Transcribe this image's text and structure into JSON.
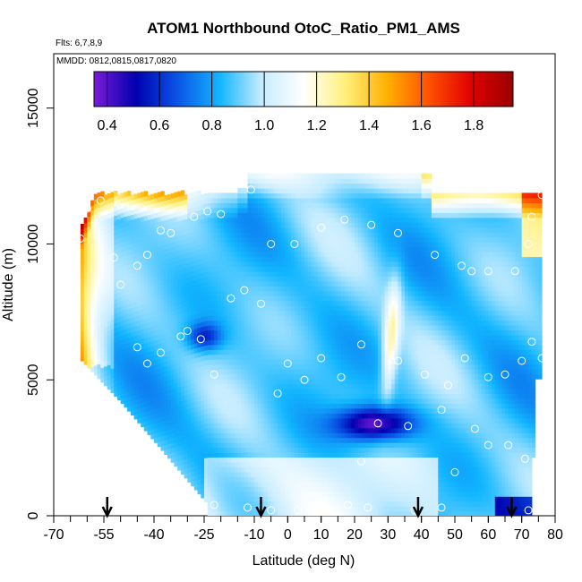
{
  "chart_data": {
    "type": "heatmap",
    "title": "ATOM1 Northbound OtoC_Ratio_PM1_AMS",
    "flights_note": "Flts: 6,7,8,9",
    "dates_note": "MMDD: 0812,0815,0817,0820",
    "xlabel": "Latitude (deg N)",
    "ylabel": "Altitude (m)",
    "xlim": [
      -70,
      80
    ],
    "ylim": [
      0,
      17000
    ],
    "x_ticks": [
      "-70",
      "-55",
      "-40",
      "-25",
      "-10",
      "0",
      "10",
      "20",
      "30",
      "40",
      "50",
      "60",
      "70",
      "80"
    ],
    "x_tick_values": [
      -70,
      -55,
      -40,
      -25,
      -10,
      0,
      10,
      20,
      30,
      40,
      50,
      60,
      70,
      80
    ],
    "y_ticks": [
      "0",
      "5000",
      "10000",
      "15000"
    ],
    "y_tick_values": [
      0,
      5000,
      10000,
      15000
    ],
    "colorbar": {
      "range": [
        0.35,
        1.95
      ],
      "ticks": [
        "0.4",
        "0.6",
        "0.8",
        "1.0",
        "1.2",
        "1.4",
        "1.6",
        "1.8"
      ],
      "tick_values": [
        0.4,
        0.6,
        0.8,
        1.0,
        1.2,
        1.4,
        1.6,
        1.8
      ],
      "colors": [
        "#7a1bd6",
        "#0000b0",
        "#0a55e6",
        "#12b6ff",
        "#c6ecff",
        "#ffffff",
        "#fff07a",
        "#ffb000",
        "#ff5000",
        "#e00000",
        "#990000"
      ]
    },
    "arrows_latitude": [
      -54,
      -8,
      39,
      67
    ],
    "points": [
      {
        "lat": -62,
        "alt": 10200
      },
      {
        "lat": -60,
        "alt": 11300
      },
      {
        "lat": -56,
        "alt": 11600
      },
      {
        "lat": -50,
        "alt": 8500
      },
      {
        "lat": -45,
        "alt": 9200
      },
      {
        "lat": -42,
        "alt": 9600
      },
      {
        "lat": -38,
        "alt": 10500
      },
      {
        "lat": -35,
        "alt": 10400
      },
      {
        "lat": -28,
        "alt": 11000
      },
      {
        "lat": -24,
        "alt": 11200
      },
      {
        "lat": -20,
        "alt": 11100
      },
      {
        "lat": -11,
        "alt": 12000
      },
      {
        "lat": -5,
        "alt": 10000
      },
      {
        "lat": 2,
        "alt": 10000
      },
      {
        "lat": 10,
        "alt": 10600
      },
      {
        "lat": 17,
        "alt": 10900
      },
      {
        "lat": 25,
        "alt": 10700
      },
      {
        "lat": 33,
        "alt": 10400
      },
      {
        "lat": 44,
        "alt": 9600
      },
      {
        "lat": 52,
        "alt": 9200
      },
      {
        "lat": 55,
        "alt": 9000
      },
      {
        "lat": 60,
        "alt": 9000
      },
      {
        "lat": 68,
        "alt": 9000
      },
      {
        "lat": 72,
        "alt": 10000
      },
      {
        "lat": 73,
        "alt": 11000
      },
      {
        "lat": 76,
        "alt": 11800
      },
      {
        "lat": -42,
        "alt": 5600
      },
      {
        "lat": -38,
        "alt": 6000
      },
      {
        "lat": -32,
        "alt": 6600
      },
      {
        "lat": -30,
        "alt": 6800
      },
      {
        "lat": -26,
        "alt": 6500
      },
      {
        "lat": -22,
        "alt": 5200
      },
      {
        "lat": -17,
        "alt": 8000
      },
      {
        "lat": -13,
        "alt": 8300
      },
      {
        "lat": -8,
        "alt": 7800
      },
      {
        "lat": -3,
        "alt": 4500
      },
      {
        "lat": 0,
        "alt": 5600
      },
      {
        "lat": 5,
        "alt": 5000
      },
      {
        "lat": 10,
        "alt": 5800
      },
      {
        "lat": 16,
        "alt": 5100
      },
      {
        "lat": 22,
        "alt": 6300
      },
      {
        "lat": 33,
        "alt": 5700
      },
      {
        "lat": 41,
        "alt": 5200
      },
      {
        "lat": 48,
        "alt": 4800
      },
      {
        "lat": 53,
        "alt": 5800
      },
      {
        "lat": 60,
        "alt": 5100
      },
      {
        "lat": 65,
        "alt": 5200
      },
      {
        "lat": 70,
        "alt": 5700
      },
      {
        "lat": 73,
        "alt": 6400
      },
      {
        "lat": 76,
        "alt": 5800
      },
      {
        "lat": 46,
        "alt": 3900
      },
      {
        "lat": 27,
        "alt": 3400
      },
      {
        "lat": 36,
        "alt": 3300
      },
      {
        "lat": 56,
        "alt": 3200
      },
      {
        "lat": 60,
        "alt": 2600
      },
      {
        "lat": 66,
        "alt": 2600
      },
      {
        "lat": 71,
        "alt": 2100
      },
      {
        "lat": 50,
        "alt": 1600
      },
      {
        "lat": 22,
        "alt": 2000
      },
      {
        "lat": -22,
        "alt": 400
      },
      {
        "lat": -12,
        "alt": 300
      },
      {
        "lat": -5,
        "alt": 200
      },
      {
        "lat": 3,
        "alt": 200
      },
      {
        "lat": 11,
        "alt": 300
      },
      {
        "lat": 18,
        "alt": 400
      },
      {
        "lat": 24,
        "alt": 300
      },
      {
        "lat": 38,
        "alt": 200
      },
      {
        "lat": 46,
        "alt": 300
      },
      {
        "lat": 72,
        "alt": 200
      },
      {
        "lat": -57,
        "alt": 4800
      },
      {
        "lat": -52,
        "alt": 9500
      },
      {
        "lat": -45,
        "alt": 6200
      }
    ]
  }
}
